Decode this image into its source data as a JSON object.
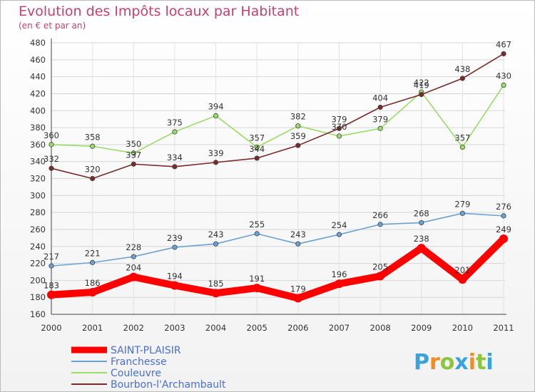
{
  "chart_data": {
    "type": "line",
    "title": "Evolution des Impôts locaux par Habitant",
    "subtitle": "(en € et par an)",
    "x": [
      "2000",
      "2001",
      "2002",
      "2003",
      "2004",
      "2005",
      "2006",
      "2007",
      "2008",
      "2009",
      "2010",
      "2011"
    ],
    "ylim": [
      160,
      480
    ],
    "yticks": [
      160,
      180,
      200,
      220,
      240,
      260,
      280,
      300,
      320,
      340,
      360,
      380,
      400,
      420,
      440,
      460,
      480
    ],
    "grid": true,
    "legend_position": "bottom-left",
    "series": [
      {
        "name": "SAINT-PLAISIR",
        "color": "#ff0000",
        "values": [
          183,
          186,
          204,
          194,
          185,
          191,
          179,
          196,
          205,
          238,
          201,
          249
        ]
      },
      {
        "name": "Franchesse",
        "color": "#6aa2d2",
        "values": [
          217,
          221,
          228,
          239,
          243,
          255,
          243,
          254,
          266,
          268,
          279,
          276
        ]
      },
      {
        "name": "Couleuvre",
        "color": "#99dd66",
        "values": [
          360,
          358,
          350,
          375,
          394,
          357,
          382,
          370,
          379,
          422,
          357,
          430
        ]
      },
      {
        "name": "Bourbon-l'Archambault",
        "color": "#7a2a2a",
        "values": [
          332,
          320,
          337,
          334,
          339,
          344,
          359,
          379,
          404,
          419,
          438,
          467
        ]
      }
    ]
  },
  "logo_text": [
    "P",
    "r",
    "o",
    "x",
    "i",
    "t",
    "i"
  ],
  "logo_colors": [
    "#3aa3dc",
    "#f28c1e",
    "#8cc63f",
    "#3aa3dc",
    "#f28c1e",
    "#8cc63f",
    "#3aa3dc"
  ]
}
